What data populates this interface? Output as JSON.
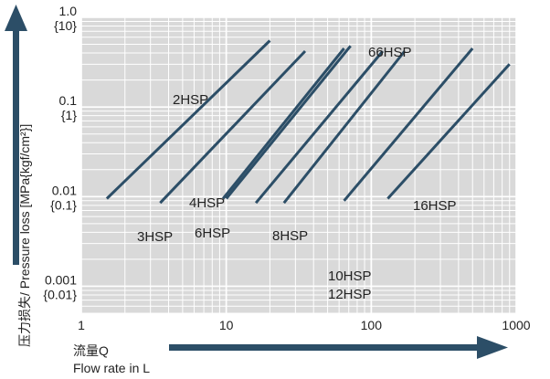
{
  "chart_data": {
    "type": "line",
    "xscale": "log",
    "yscale": "log",
    "xlim": [
      1,
      1000
    ],
    "ylim": [
      0.0005,
      1.0
    ],
    "xticks": [
      "1",
      "10",
      "100",
      "1000"
    ],
    "yticks": [
      {
        "value": 1.0,
        "label": "1.0",
        "sub": "{10}"
      },
      {
        "value": 0.1,
        "label": "0.1",
        "sub": "{1}"
      },
      {
        "value": 0.01,
        "label": "0.01",
        "sub": "{0.1}"
      },
      {
        "value": 0.001,
        "label": "0.001",
        "sub": "{0.01}"
      }
    ],
    "ylabel": "压力损失/ Pressure loss [MPa{kgf/cm²}]",
    "xlabel_line1": "流量Q",
    "xlabel_line2": "Flow rate in L",
    "grid": true,
    "series": [
      {
        "name": "2HSP",
        "x": [
          1.5,
          20
        ],
        "y": [
          0.0095,
          0.55
        ]
      },
      {
        "name": "3HSP",
        "x": [
          3.5,
          35
        ],
        "y": [
          0.0085,
          0.42
        ]
      },
      {
        "name": "4HSP",
        "x": [
          9.5,
          65
        ],
        "y": [
          0.0095,
          0.45
        ]
      },
      {
        "name": "6HSP",
        "x": [
          10,
          72
        ],
        "y": [
          0.0095,
          0.48
        ]
      },
      {
        "name": "8HSP",
        "x": [
          16,
          120
        ],
        "y": [
          0.0085,
          0.42
        ]
      },
      {
        "name": "10HSP",
        "x": [
          25,
          170
        ],
        "y": [
          0.0085,
          0.42
        ]
      },
      {
        "name": "12HSP",
        "x": [
          65,
          500
        ],
        "y": [
          0.009,
          0.45
        ]
      },
      {
        "name": "16HSP",
        "x": [
          130,
          900
        ],
        "y": [
          0.0095,
          0.3
        ]
      },
      {
        "name": "66HSP",
        "x": [],
        "y": []
      }
    ],
    "labels": [
      {
        "text": "2HSP"
      },
      {
        "text": "3HSP"
      },
      {
        "text": "4HSP"
      },
      {
        "text": "6HSP"
      },
      {
        "text": "8HSP"
      },
      {
        "text": "10HSP"
      },
      {
        "text": "12HSP"
      },
      {
        "text": "16HSP"
      },
      {
        "text": "66HSP"
      }
    ],
    "colors": {
      "plot_bg": "#d9d9d9",
      "grid": "#ffffff",
      "series": "#2c4e67",
      "arrow": "#2c4e67"
    }
  }
}
